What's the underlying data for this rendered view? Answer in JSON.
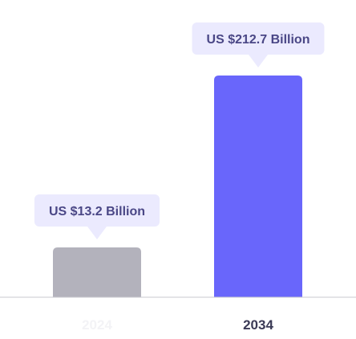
{
  "chart_data": {
    "type": "bar",
    "categories": [
      "2024",
      "2034"
    ],
    "values": [
      13.2,
      212.7
    ],
    "data_labels": [
      "US $13.2 Billion",
      "US $212.7 Billion"
    ],
    "ylim": [
      0,
      240
    ],
    "grid": false,
    "legend": "none",
    "colors": {
      "bars": [
        "#b3b2bc",
        "#6966fb"
      ],
      "callout_bg": "#ebeafe",
      "callout_text": "#4a4786",
      "tick_labels": [
        "#f3f3f6",
        "#3b3a56"
      ],
      "baseline": "#c9c9cf"
    }
  }
}
